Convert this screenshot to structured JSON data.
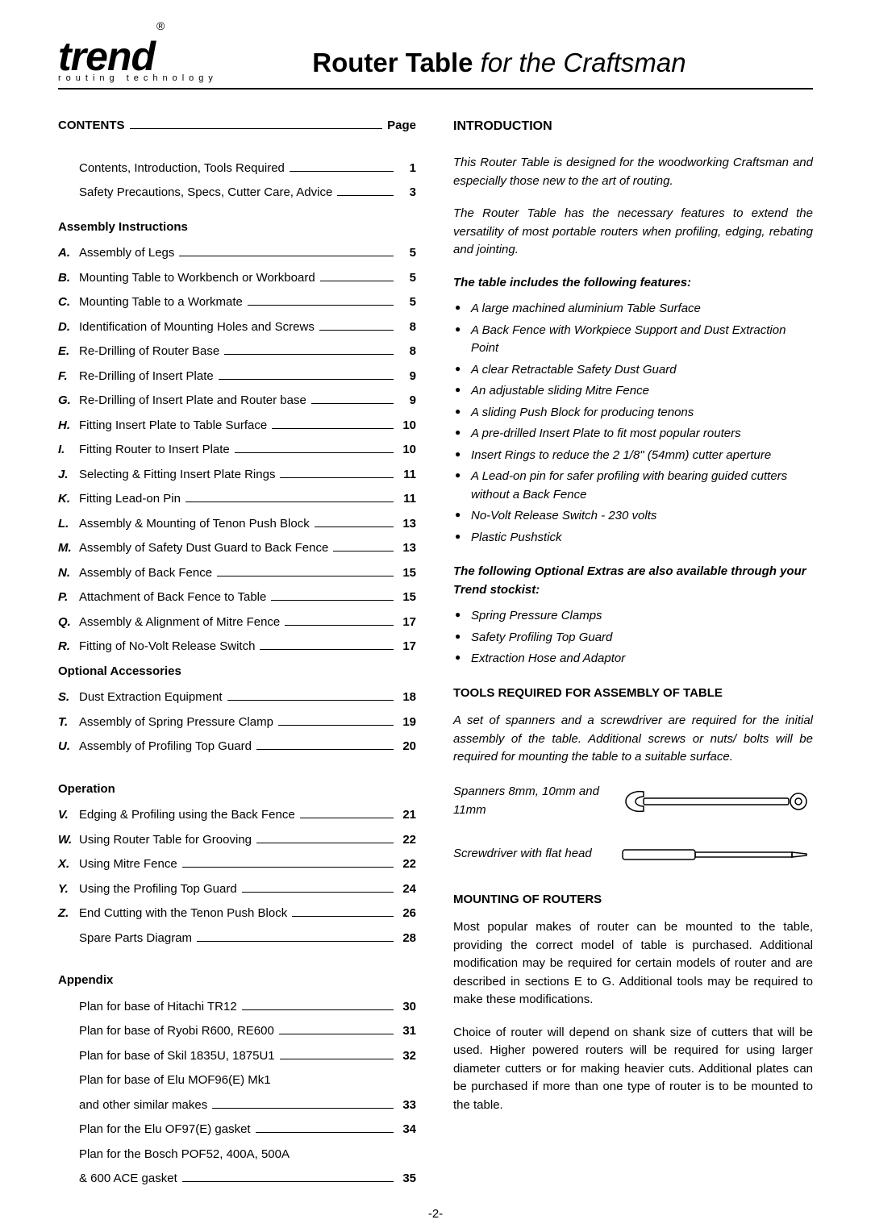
{
  "header": {
    "logo": "trend",
    "reg": "®",
    "tagline": "routing technology",
    "title_bold": "Router Table",
    "title_italic": " for the Craftsman"
  },
  "page_number": "-2-",
  "contents": {
    "label": "CONTENTS",
    "page_label": "Page",
    "top": [
      {
        "text": "Contents, Introduction, Tools Required",
        "page": "1"
      },
      {
        "text": "Safety Precautions, Specs, Cutter Care, Advice",
        "page": "3"
      }
    ],
    "assembly_heading": "Assembly Instructions",
    "assembly": [
      {
        "l": "A.",
        "text": "Assembly of Legs",
        "page": "5"
      },
      {
        "l": "B.",
        "text": "Mounting Table to Workbench or Workboard",
        "page": "5"
      },
      {
        "l": "C.",
        "text": "Mounting Table to a Workmate",
        "page": "5"
      },
      {
        "l": "D.",
        "text": "Identification of Mounting Holes and Screws",
        "page": "8"
      },
      {
        "l": "E.",
        "text": "Re-Drilling of Router Base",
        "page": "8"
      },
      {
        "l": "F.",
        "text": "Re-Drilling of Insert Plate",
        "page": "9"
      },
      {
        "l": "G.",
        "text": "Re-Drilling of Insert Plate and Router base",
        "page": "9"
      },
      {
        "l": "H.",
        "text": "Fitting Insert Plate to Table Surface",
        "page": "10"
      },
      {
        "l": "I.",
        "text": "Fitting Router to Insert Plate",
        "page": "10"
      },
      {
        "l": "J.",
        "text": "Selecting & Fitting Insert Plate Rings",
        "page": "11"
      },
      {
        "l": "K.",
        "text": "Fitting Lead-on Pin",
        "page": "11"
      },
      {
        "l": "L.",
        "text": "Assembly & Mounting of Tenon Push Block",
        "page": "13"
      },
      {
        "l": "M.",
        "text": "Assembly of Safety Dust Guard to Back Fence",
        "page": "13"
      },
      {
        "l": "N.",
        "text": "Assembly of Back Fence",
        "page": "15"
      },
      {
        "l": "P.",
        "text": "Attachment of Back Fence to Table",
        "page": "15"
      },
      {
        "l": "Q.",
        "text": "Assembly & Alignment of Mitre Fence",
        "page": "17"
      },
      {
        "l": "R.",
        "text": "Fitting of No-Volt Release Switch",
        "page": "17"
      }
    ],
    "optional_heading": "Optional Accessories",
    "optional": [
      {
        "l": "S.",
        "text": "Dust Extraction Equipment",
        "page": "18"
      },
      {
        "l": "T.",
        "text": "Assembly of Spring Pressure Clamp",
        "page": "19"
      },
      {
        "l": "U.",
        "text": "Assembly of Profiling Top Guard",
        "page": "20"
      }
    ],
    "operation_heading": "Operation",
    "operation": [
      {
        "l": "V.",
        "text": "Edging & Profiling using the Back Fence",
        "page": "21"
      },
      {
        "l": "W.",
        "text": "Using Router Table for Grooving",
        "page": "22"
      },
      {
        "l": "X.",
        "text": "Using Mitre Fence",
        "page": "22"
      },
      {
        "l": "Y.",
        "text": "Using the Profiling Top Guard",
        "page": "24"
      },
      {
        "l": "Z.",
        "text": "End Cutting with the Tenon Push Block",
        "page": "26"
      },
      {
        "l": "",
        "text": "Spare Parts Diagram",
        "page": "28"
      }
    ],
    "appendix_heading": "Appendix",
    "appendix": [
      {
        "text": "Plan for base of Hitachi TR12",
        "page": "30"
      },
      {
        "text": "Plan for base of Ryobi R600, RE600",
        "page": "31"
      },
      {
        "text": "Plan for base of Skil 1835U, 1875U1",
        "page": "32"
      },
      {
        "text": "Plan for base of Elu MOF96(E) Mk1",
        "page": ""
      },
      {
        "text": "and other similar makes",
        "page": "33"
      },
      {
        "text": "Plan for the Elu OF97(E) gasket",
        "page": "34"
      },
      {
        "text": "Plan for the Bosch POF52, 400A, 500A",
        "page": ""
      },
      {
        "text": "& 600 ACE gasket",
        "page": "35"
      }
    ]
  },
  "right": {
    "intro_heading": "INTRODUCTION",
    "para1": "This Router Table is designed for the woodworking Craftsman and especially those new to the art of routing.",
    "para2": "The Router Table has the necessary features to extend the versatility of most portable routers when profiling, edging, rebating and jointing.",
    "features_heading": "The table includes the following features:",
    "features": [
      "A large machined aluminium Table Surface",
      "A Back Fence with Workpiece Support and Dust Extraction Point",
      "A clear Retractable Safety Dust Guard",
      "An adjustable sliding Mitre Fence",
      "A sliding Push Block for producing tenons",
      "A pre-drilled Insert Plate to fit most popular routers",
      "Insert Rings to reduce the 2 1/8\" (54mm) cutter aperture",
      "A Lead-on pin for safer profiling with bearing guided cutters without a Back Fence",
      "No-Volt Release Switch - 230 volts",
      "Plastic Pushstick"
    ],
    "extras_heading": "The following Optional Extras are also available through your Trend stockist:",
    "extras": [
      "Spring Pressure Clamps",
      "Safety Profiling Top Guard",
      "Extraction Hose and Adaptor"
    ],
    "tools_heading": "TOOLS REQUIRED FOR ASSEMBLY OF TABLE",
    "tools_para": "A set of spanners and a screwdriver are required for the initial assembly of the table. Additional screws or nuts/ bolts will be required for mounting the table to a suitable surface.",
    "tool1": "Spanners 8mm, 10mm and 11mm",
    "tool2": "Screwdriver with flat head",
    "mount_heading": "MOUNTING OF ROUTERS",
    "mount_p1": "Most popular makes of router can be mounted to the table, providing the correct model of table is purchased. Additional modification may be required for certain models of router and are described in sections E to G. Additional tools may be required to make these modifications.",
    "mount_p2": "Choice of router will depend on shank size of cutters that will be used. Higher powered routers will be required for using larger diameter cutters or for making heavier cuts. Additional plates can be purchased if more than one type of router is to be mounted to the table."
  }
}
